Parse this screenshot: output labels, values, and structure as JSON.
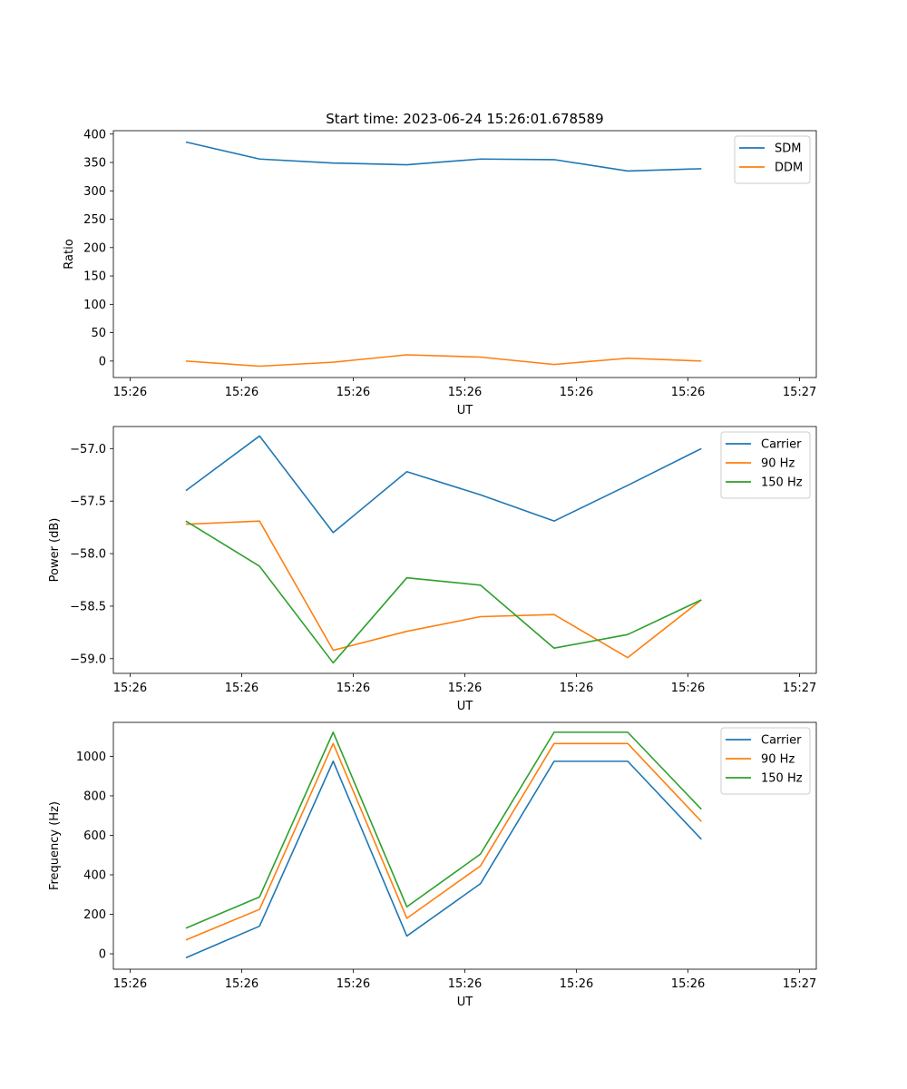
{
  "figure": {
    "title": "Start time: 2023-06-24 15:26:01.678589"
  },
  "colors": {
    "blue": "#1f77b4",
    "orange": "#ff7f0e",
    "green": "#2ca02c"
  },
  "chart_data": [
    {
      "type": "line",
      "title": "Start time: 2023-06-24 15:26:01.678589",
      "xlabel": "UT",
      "ylabel": "Ratio",
      "x_tick_labels": [
        "15:26",
        "15:26",
        "15:26",
        "15:26",
        "15:26",
        "15:26",
        "15:27"
      ],
      "x": [
        0.5,
        1.16,
        1.82,
        2.48,
        3.14,
        3.8,
        4.46,
        5.12
      ],
      "xlim": [
        -0.15,
        6.15
      ],
      "ylim": [
        -29,
        406
      ],
      "y_ticks": [
        0,
        50,
        100,
        150,
        200,
        250,
        300,
        350,
        400
      ],
      "legend_position": "upper right",
      "series": [
        {
          "name": "SDM",
          "color": "#1f77b4",
          "values": [
            386,
            356,
            349,
            346,
            356,
            355,
            335,
            339
          ]
        },
        {
          "name": "DDM",
          "color": "#ff7f0e",
          "values": [
            0,
            -9,
            -2,
            11,
            7,
            -6,
            5,
            0
          ]
        }
      ]
    },
    {
      "type": "line",
      "xlabel": "UT",
      "ylabel": "Power (dB)",
      "x_tick_labels": [
        "15:26",
        "15:26",
        "15:26",
        "15:26",
        "15:26",
        "15:26",
        "15:27"
      ],
      "x": [
        0.5,
        1.16,
        1.82,
        2.48,
        3.14,
        3.8,
        4.46,
        5.12
      ],
      "xlim": [
        -0.15,
        6.15
      ],
      "ylim": [
        -59.14,
        -56.79
      ],
      "y_ticks": [
        -57.0,
        -57.5,
        -58.0,
        -58.5,
        -59.0
      ],
      "legend_position": "upper right",
      "series": [
        {
          "name": "Carrier",
          "color": "#1f77b4",
          "values": [
            -57.4,
            -56.88,
            -57.8,
            -57.22,
            -57.44,
            -57.69,
            -57.35,
            -57.0
          ]
        },
        {
          "name": "90 Hz",
          "color": "#ff7f0e",
          "values": [
            -57.72,
            -57.69,
            -58.92,
            -58.74,
            -58.6,
            -58.58,
            -58.99,
            -58.44
          ]
        },
        {
          "name": "150 Hz",
          "color": "#2ca02c",
          "values": [
            -57.69,
            -58.12,
            -59.04,
            -58.23,
            -58.3,
            -58.9,
            -58.77,
            -58.44
          ]
        }
      ]
    },
    {
      "type": "line",
      "xlabel": "UT",
      "ylabel": "Frequency (Hz)",
      "x_tick_labels": [
        "15:26",
        "15:26",
        "15:26",
        "15:26",
        "15:26",
        "15:26",
        "15:27"
      ],
      "x": [
        0.5,
        1.16,
        1.82,
        2.48,
        3.14,
        3.8,
        4.46,
        5.12
      ],
      "xlim": [
        -0.15,
        6.15
      ],
      "ylim": [
        -78,
        1172
      ],
      "y_ticks": [
        0,
        200,
        400,
        600,
        800,
        1000
      ],
      "legend_position": "upper right",
      "series": [
        {
          "name": "Carrier",
          "color": "#1f77b4",
          "values": [
            -20,
            140,
            975,
            90,
            355,
            975,
            975,
            580
          ]
        },
        {
          "name": "90 Hz",
          "color": "#ff7f0e",
          "values": [
            70,
            225,
            1065,
            180,
            445,
            1065,
            1065,
            670
          ]
        },
        {
          "name": "150 Hz",
          "color": "#2ca02c",
          "values": [
            130,
            288,
            1122,
            238,
            505,
            1122,
            1122,
            732
          ]
        }
      ]
    }
  ]
}
